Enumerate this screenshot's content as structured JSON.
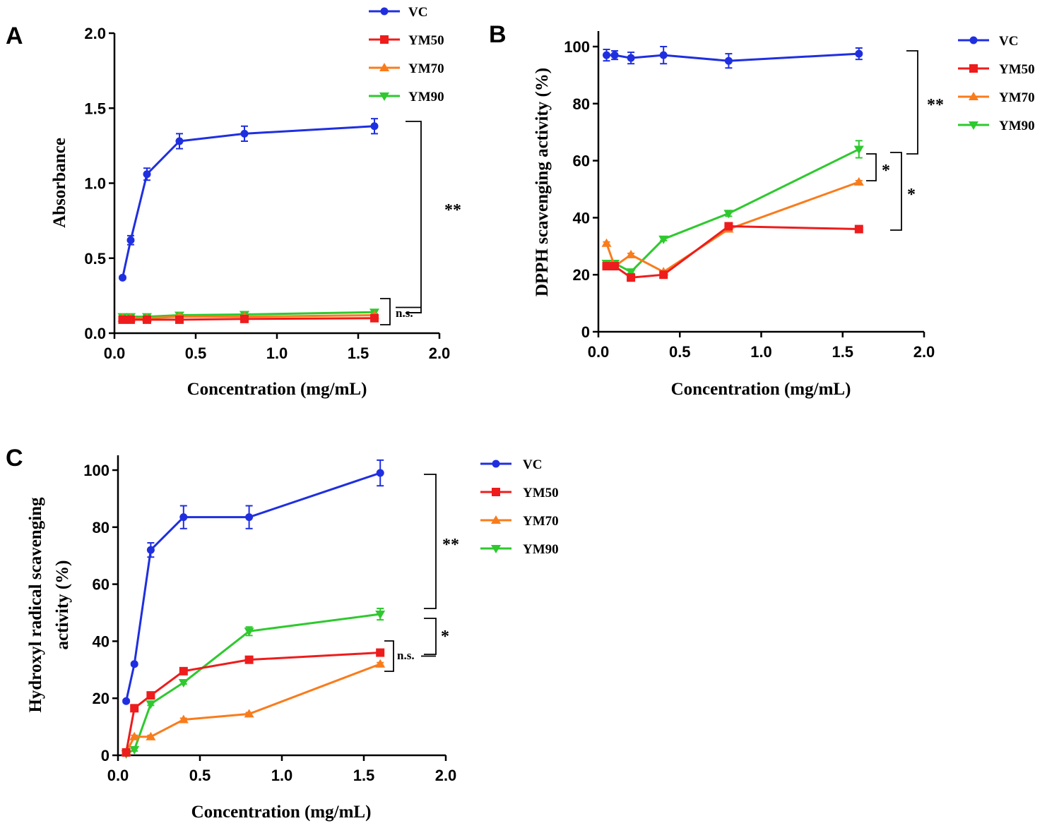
{
  "chart_data": [
    {
      "panel": "A",
      "type": "line",
      "xlabel": "Concentration (mg/mL)",
      "ylabel": "Absorbance",
      "xlim": [
        0,
        2.0
      ],
      "ylim": [
        0,
        2.0
      ],
      "xticks": [
        "0.0",
        "0.5",
        "1.0",
        "1.5",
        "2.0"
      ],
      "yticks": [
        "0.0",
        "0.5",
        "1.0",
        "1.5",
        "2.0"
      ],
      "x": [
        0.05,
        0.1,
        0.2,
        0.4,
        0.8,
        1.6
      ],
      "series": [
        {
          "name": "VC",
          "color": "#1f2fe0",
          "marker": "circle",
          "values": [
            0.37,
            0.62,
            1.06,
            1.28,
            1.33,
            1.38
          ],
          "errors": [
            0.01,
            0.03,
            0.04,
            0.05,
            0.05,
            0.05
          ]
        },
        {
          "name": "YM50",
          "color": "#ee1c1c",
          "marker": "square",
          "values": [
            0.09,
            0.09,
            0.09,
            0.09,
            0.095,
            0.1
          ],
          "errors": [
            0.02,
            0.02,
            0.02,
            0.02,
            0.02,
            0.02
          ]
        },
        {
          "name": "YM70",
          "color": "#f97c1c",
          "marker": "triangle-up",
          "values": [
            0.1,
            0.1,
            0.1,
            0.11,
            0.11,
            0.12
          ],
          "errors": [
            0.01,
            0.01,
            0.01,
            0.01,
            0.01,
            0.01
          ]
        },
        {
          "name": "YM90",
          "color": "#2ec92e",
          "marker": "triangle-down",
          "values": [
            0.11,
            0.11,
            0.11,
            0.12,
            0.125,
            0.14
          ],
          "errors": [
            0.01,
            0.01,
            0.01,
            0.01,
            0.01,
            0.01
          ]
        }
      ],
      "annotations": [
        {
          "text": "**",
          "kind": "bracket",
          "range": [
            0.12,
            1.41
          ]
        },
        {
          "text": "n.s.",
          "kind": "bracket",
          "range": [
            0.06,
            0.23
          ]
        }
      ]
    },
    {
      "panel": "B",
      "type": "line",
      "xlabel": "Concentration (mg/mL)",
      "ylabel": "DPPH scavenging activity (%)",
      "xlim": [
        0,
        2.0
      ],
      "ylim": [
        0,
        105
      ],
      "xticks": [
        "0.0",
        "0.5",
        "1.0",
        "1.5",
        "2.0"
      ],
      "yticks": [
        "0",
        "20",
        "40",
        "60",
        "80",
        "100"
      ],
      "x": [
        0.05,
        0.1,
        0.2,
        0.4,
        0.8,
        1.6
      ],
      "series": [
        {
          "name": "VC",
          "color": "#1f2fe0",
          "marker": "circle",
          "values": [
            97,
            97,
            96,
            97,
            95,
            97.5
          ],
          "errors": [
            2,
            1.5,
            2,
            3,
            2.5,
            2
          ]
        },
        {
          "name": "YM50",
          "color": "#ee1c1c",
          "marker": "square",
          "values": [
            23,
            23,
            19,
            20,
            37,
            36
          ],
          "errors": [
            0.5,
            0.5,
            0.5,
            0.5,
            0.5,
            0.5
          ]
        },
        {
          "name": "YM70",
          "color": "#f97c1c",
          "marker": "triangle-up",
          "values": [
            31,
            23,
            27,
            21,
            36,
            52.5
          ],
          "errors": [
            0.5,
            0.5,
            0.5,
            0.5,
            0.5,
            0.5
          ]
        },
        {
          "name": "YM90",
          "color": "#2ec92e",
          "marker": "triangle-down",
          "values": [
            24,
            24,
            21,
            32.5,
            41.5,
            64
          ],
          "errors": [
            0.5,
            0.5,
            0.5,
            0.5,
            1,
            3
          ]
        }
      ],
      "annotations": [
        {
          "text": "**",
          "kind": "bracket",
          "range": [
            62,
            98
          ]
        },
        {
          "text": "*",
          "kind": "bracket",
          "range": [
            53,
            62
          ]
        },
        {
          "text": "*",
          "kind": "bracket",
          "range": [
            35,
            63
          ]
        }
      ]
    },
    {
      "panel": "C",
      "type": "line",
      "xlabel": "Concentration (mg/mL)",
      "ylabel_line1": "Hydroxyl radical scavenging",
      "ylabel_line2": "activity (%)",
      "xlim": [
        0,
        2.0
      ],
      "ylim": [
        0,
        105
      ],
      "xticks": [
        "0.0",
        "0.5",
        "1.0",
        "1.5",
        "2.0"
      ],
      "yticks": [
        "0",
        "20",
        "40",
        "60",
        "80",
        "100"
      ],
      "x": [
        0.05,
        0.1,
        0.2,
        0.4,
        0.8,
        1.6
      ],
      "series": [
        {
          "name": "VC",
          "color": "#1f2fe0",
          "marker": "circle",
          "values": [
            19,
            32,
            72,
            83.5,
            83.5,
            99
          ],
          "errors": [
            0.5,
            0.5,
            2.5,
            4,
            4,
            4.5
          ]
        },
        {
          "name": "YM50",
          "color": "#ee1c1c",
          "marker": "square",
          "values": [
            1,
            16.5,
            21,
            29.5,
            33.5,
            36
          ],
          "errors": [
            0.5,
            0.5,
            0.5,
            0.5,
            0.5,
            0.5
          ]
        },
        {
          "name": "YM70",
          "color": "#f97c1c",
          "marker": "triangle-up",
          "values": [
            1,
            6.5,
            6.5,
            12.5,
            14.5,
            32
          ],
          "errors": [
            0.5,
            0.5,
            0.5,
            0.5,
            0.5,
            0.5
          ]
        },
        {
          "name": "YM90",
          "color": "#2ec92e",
          "marker": "triangle-down",
          "values": [
            0.5,
            2,
            18,
            25.5,
            43.5,
            49.5
          ],
          "errors": [
            0.5,
            0.5,
            0.5,
            0.5,
            1.5,
            2
          ]
        }
      ],
      "annotations": [
        {
          "text": "**",
          "kind": "bracket",
          "range": [
            52,
            99
          ]
        },
        {
          "text": "*",
          "kind": "bracket",
          "range": [
            36,
            48
          ]
        },
        {
          "text": "n.s.",
          "kind": "bracket",
          "range": [
            30,
            41
          ]
        }
      ]
    }
  ]
}
